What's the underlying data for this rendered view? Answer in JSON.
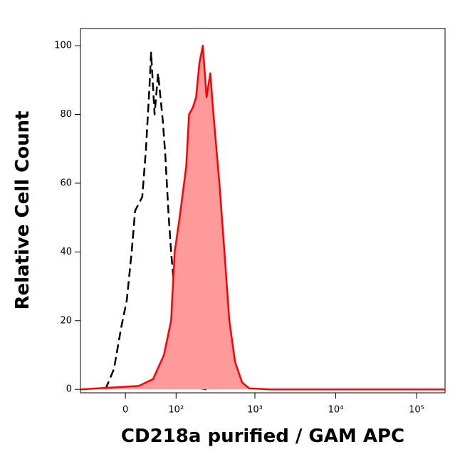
{
  "chart_data": {
    "type": "histogram-overlay",
    "x_label": "CD218a purified / GAM APC",
    "y_label": "Relative Cell Count",
    "xscale": "biexponential",
    "xlim": [
      -83,
      225000
    ],
    "xticks": [
      0,
      {
        "value": 100,
        "label": "10²"
      },
      {
        "value": 1000,
        "label": "10³"
      },
      {
        "value": 10000,
        "label": "10⁴"
      },
      {
        "value": 100000,
        "label": "10⁵"
      }
    ],
    "ylim": [
      -1,
      105
    ],
    "yticks": [
      0,
      20,
      40,
      60,
      80,
      100
    ],
    "series": [
      {
        "color": "#000000",
        "style": "dashed",
        "fill": null,
        "x": [
          -30,
          -16.5,
          -6,
          2,
          9,
          14,
          25,
          31,
          37,
          40,
          46.5,
          53.6,
          64,
          70,
          77.5,
          85,
          95.5,
          106,
          130,
          149,
          184,
          250
        ],
        "values": [
          0,
          6,
          18,
          26,
          40,
          52,
          56,
          70,
          88,
          98,
          80,
          92,
          78,
          68,
          52,
          40,
          28,
          16,
          6,
          2,
          0.5,
          0
        ]
      },
      {
        "color": "#ff0000",
        "style": "solid",
        "fill": "#ff9a9a",
        "x": [
          -83,
          19.5,
          43.7,
          66.5,
          85,
          95.5,
          112,
          137,
          149,
          167,
          184,
          203,
          224,
          250,
          278,
          305,
          362,
          418,
          482,
          567,
          694,
          850,
          1563,
          225000
        ],
        "values": [
          0,
          1,
          3,
          10,
          20,
          40,
          50,
          65,
          80,
          82,
          85,
          95,
          100,
          85,
          92,
          80,
          60,
          40,
          20,
          8,
          2,
          0.3,
          0,
          0
        ]
      }
    ]
  }
}
